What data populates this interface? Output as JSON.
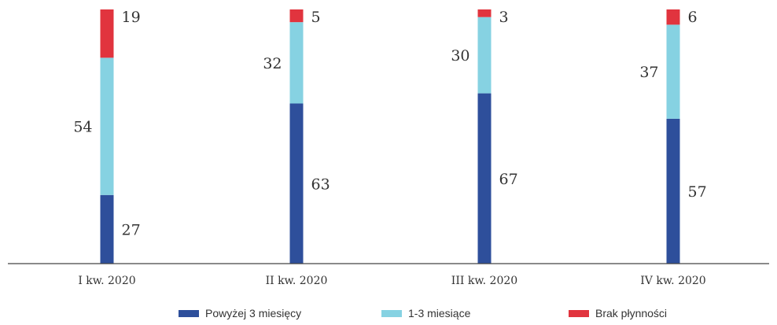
{
  "chart_data": {
    "type": "bar",
    "stacked": true,
    "categories": [
      "I kw. 2020",
      "II kw. 2020",
      "III kw. 2020",
      "IV kw. 2020"
    ],
    "series": [
      {
        "name": "Powyżej 3 miesięcy",
        "color": "#2e4f9b",
        "values": [
          27,
          63,
          67,
          57
        ]
      },
      {
        "name": "1-3 miesiące",
        "color": "#86d2e2",
        "values": [
          54,
          32,
          30,
          37
        ]
      },
      {
        "name": "Brak płynności",
        "color": "#e1343e",
        "values": [
          19,
          5,
          3,
          6
        ]
      }
    ],
    "title": "",
    "xlabel": "",
    "ylabel": "",
    "ylim": [
      0,
      100
    ],
    "grid": false,
    "legend": "bottom",
    "axis_color": "#444444"
  }
}
